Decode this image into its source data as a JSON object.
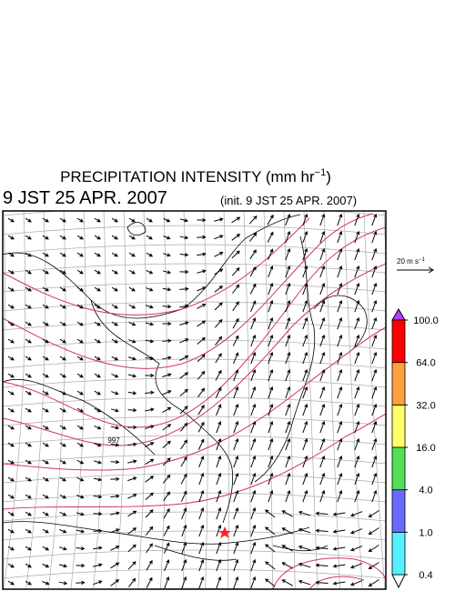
{
  "header": {
    "title": "PRECIPITATION INTENSITY (mm hr",
    "title_sup": "−1",
    "title_end": ")",
    "valid_time": "9 JST 25 APR. 2007",
    "init_time": "(init. 9 JST 25 APR. 2007)"
  },
  "map": {
    "contour_label": "997"
  },
  "wind_scale": {
    "label": "20 m s",
    "label_sup": "−1"
  },
  "colorbar": {
    "levels": [
      {
        "value": 0.4,
        "label": "0.4"
      },
      {
        "value": 1,
        "label": "1.0"
      },
      {
        "value": 4,
        "label": "4.0"
      },
      {
        "value": 16,
        "label": "16.0"
      },
      {
        "value": 32,
        "label": "32.0"
      },
      {
        "value": 64,
        "label": "64.0"
      },
      {
        "value": 100,
        "label": "100.0"
      }
    ],
    "colors": [
      "#55f0ff",
      "#6a6aff",
      "#55e055",
      "#ffff66",
      "#ffa040",
      "#ff0000"
    ],
    "under_color": "#ffffff",
    "over_color": "#b040ff"
  }
}
